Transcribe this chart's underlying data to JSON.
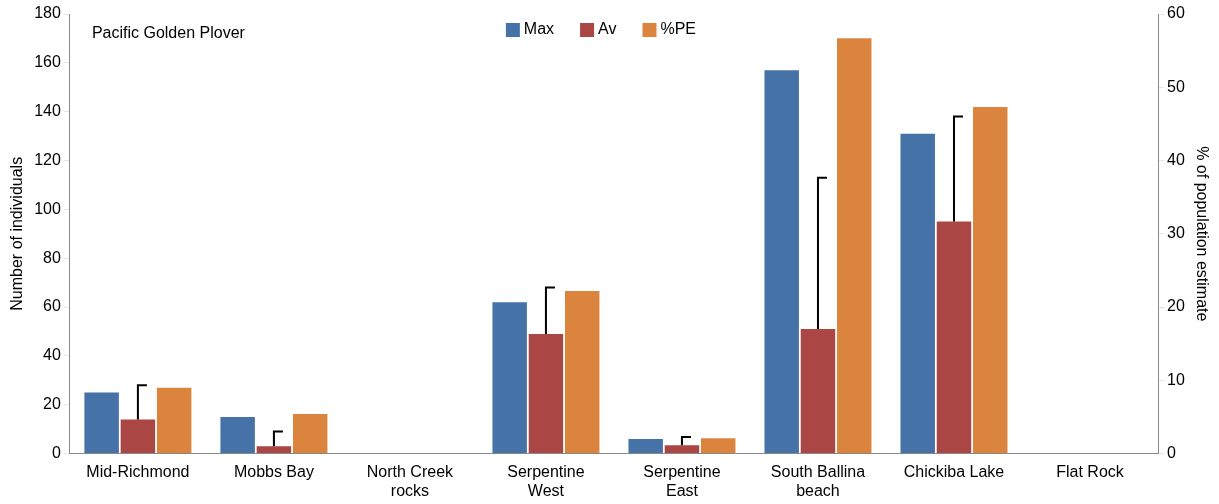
{
  "chart_data": {
    "type": "bar",
    "annotations": [
      "Pacific Golden Plover"
    ],
    "ylabel": "Number of individuals",
    "y2label": "% of population estimate",
    "categories": [
      "Mid-Richmond",
      "Mobbs Bay",
      "North Creek rocks",
      "Serpentine West",
      "Serpentine East",
      "South Ballina beach",
      "Chickiba Lake",
      "Flat Rock"
    ],
    "series": [
      {
        "name": "Max",
        "color": "#4572a7",
        "values": [
          25,
          15,
          0,
          62,
          6,
          157,
          131,
          0
        ]
      },
      {
        "name": "Av",
        "color": "#aa4643",
        "values": [
          14,
          3,
          0,
          49,
          3.4,
          51,
          95,
          0
        ],
        "errors": [
          [
            14,
            28
          ],
          [
            3,
            9
          ],
          null,
          [
            49,
            68
          ],
          [
            3.4,
            6.8
          ],
          [
            51,
            113
          ],
          [
            95,
            138
          ],
          null
        ]
      },
      {
        "name": "%PE",
        "color": "#db843d",
        "axis": "y2",
        "values": [
          9,
          5.4,
          0,
          22.2,
          2.1,
          56.7,
          47.3,
          0
        ]
      }
    ],
    "ylim": [
      0,
      180
    ],
    "yticks": [
      0,
      20,
      40,
      60,
      80,
      100,
      120,
      140,
      160,
      180
    ],
    "y2lim": [
      0,
      60
    ],
    "y2ticks": [
      0,
      10,
      20,
      30,
      40,
      50,
      60
    ],
    "grid": false,
    "legend": "top"
  }
}
